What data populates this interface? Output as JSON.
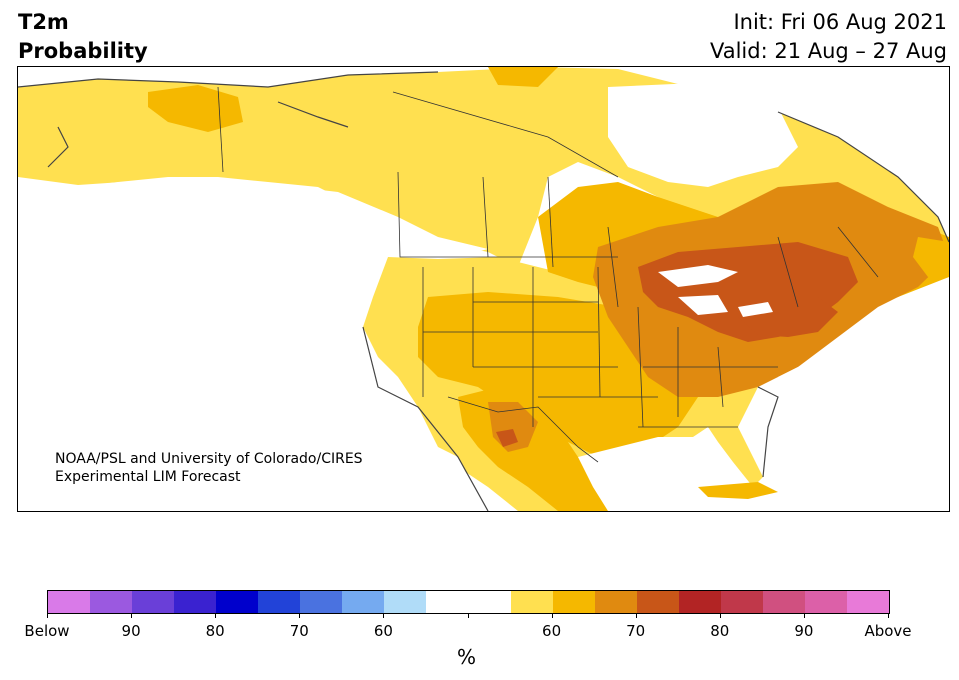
{
  "header": {
    "title_line1": "T2m",
    "title_line2": "Probability",
    "init": "Init: Fri 06 Aug 2021",
    "valid": "Valid: 21 Aug – 27 Aug"
  },
  "credit": {
    "line1": "NOAA/PSL and University of Colorado/CIRES",
    "line2": "Experimental LIM Forecast"
  },
  "colorbar": {
    "colors": [
      "#d97ae8",
      "#9b59e0",
      "#6a3fd8",
      "#3a22d0",
      "#0000cc",
      "#2243d8",
      "#4a72e0",
      "#75aaf0",
      "#b0dcf8",
      "#ffffff",
      "#ffffff",
      "#ffe050",
      "#f5b800",
      "#e08a10",
      "#c85618",
      "#b22424",
      "#c0384a",
      "#d05080",
      "#dc60a8",
      "#e87ad8"
    ],
    "labels": [
      "Below",
      "90",
      "80",
      "70",
      "60",
      "",
      "60",
      "70",
      "80",
      "90",
      "Above"
    ],
    "unit": "%"
  },
  "map": {
    "palette": {
      "light_yellow": "#ffe050",
      "gold": "#f5b800",
      "orange": "#e08a10",
      "dark_orange": "#c85618",
      "land_white": "#ffffff",
      "borders": "#333333"
    }
  }
}
